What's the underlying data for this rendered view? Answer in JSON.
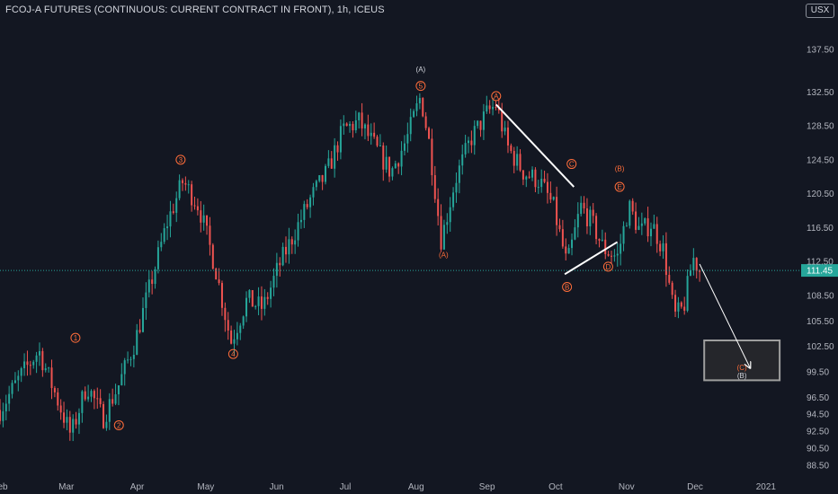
{
  "title": "FCOJ-A FUTURES (CONTINUOUS: CURRENT CONTRACT IN FRONT), 1h, ICEUS",
  "currency": "USX",
  "colors": {
    "background": "#131722",
    "up": "#26a69a",
    "down": "#ef5350",
    "wave_label": "#ff6d3a",
    "annotation_line": "#ffffff",
    "target_box": "#9e9e9e"
  },
  "chart_data": {
    "type": "candlestick",
    "title": "FCOJ-A FUTURES (CONTINUOUS: CURRENT CONTRACT IN FRONT), 1h, ICEUS",
    "y_ticks": [
      "137.50",
      "132.50",
      "128.50",
      "124.50",
      "120.50",
      "116.50",
      "112.50",
      "108.50",
      "105.50",
      "102.50",
      "99.50",
      "96.50",
      "94.50",
      "92.50",
      "90.50",
      "88.50"
    ],
    "x_ticks": [
      "Feb",
      "Mar",
      "Apr",
      "May",
      "Jun",
      "Jul",
      "Aug",
      "Sep",
      "Oct",
      "Nov",
      "Dec",
      "2021"
    ],
    "last_price": "111.45",
    "ylim": [
      87,
      141
    ],
    "price_path": [
      [
        "2020-02-01",
        95
      ],
      [
        "2020-02-10",
        99
      ],
      [
        "2020-02-18",
        102
      ],
      [
        "2020-02-25",
        97
      ],
      [
        "2020-03-03",
        92
      ],
      [
        "2020-03-10",
        98
      ],
      [
        "2020-03-17",
        94
      ],
      [
        "2020-03-24",
        98
      ],
      [
        "2020-03-31",
        103
      ],
      [
        "2020-04-07",
        110
      ],
      [
        "2020-04-14",
        117
      ],
      [
        "2020-04-21",
        122
      ],
      [
        "2020-04-28",
        119
      ],
      [
        "2020-05-05",
        112
      ],
      [
        "2020-05-12",
        103
      ],
      [
        "2020-05-19",
        108
      ],
      [
        "2020-05-26",
        107
      ],
      [
        "2020-06-02",
        112
      ],
      [
        "2020-06-09",
        116
      ],
      [
        "2020-06-16",
        120
      ],
      [
        "2020-06-23",
        123
      ],
      [
        "2020-06-30",
        128
      ],
      [
        "2020-07-07",
        129
      ],
      [
        "2020-07-14",
        126
      ],
      [
        "2020-07-21",
        123
      ],
      [
        "2020-07-28",
        127
      ],
      [
        "2020-08-03",
        132
      ],
      [
        "2020-08-07",
        126
      ],
      [
        "2020-08-12",
        115
      ],
      [
        "2020-08-18",
        122
      ],
      [
        "2020-08-25",
        127
      ],
      [
        "2020-09-01",
        130
      ],
      [
        "2020-09-05",
        131
      ],
      [
        "2020-09-10",
        126
      ],
      [
        "2020-09-17",
        123
      ],
      [
        "2020-09-24",
        122
      ],
      [
        "2020-09-30",
        119
      ],
      [
        "2020-10-06",
        112
      ],
      [
        "2020-10-12",
        119
      ],
      [
        "2020-10-17",
        117
      ],
      [
        "2020-10-22",
        114
      ],
      [
        "2020-10-28",
        113
      ],
      [
        "2020-11-02",
        119
      ],
      [
        "2020-11-07",
        116
      ],
      [
        "2020-11-12",
        117
      ],
      [
        "2020-11-17",
        114
      ],
      [
        "2020-11-22",
        106
      ],
      [
        "2020-11-26",
        107
      ],
      [
        "2020-11-30",
        113
      ],
      [
        "2020-12-03",
        111.45
      ]
    ],
    "wave_labels": [
      {
        "text": "1",
        "date": "2020-03-05",
        "price": 103.5,
        "style": "circle"
      },
      {
        "text": "2",
        "date": "2020-03-24",
        "price": 93.2,
        "style": "circle"
      },
      {
        "text": "3",
        "date": "2020-04-20",
        "price": 124.5,
        "style": "circle"
      },
      {
        "text": "4",
        "date": "2020-05-13",
        "price": 101.6,
        "style": "circle"
      },
      {
        "text": "5",
        "date": "2020-08-03",
        "price": 133.2,
        "style": "circle"
      },
      {
        "text": "(A)",
        "date": "2020-08-03",
        "price": 135.2,
        "style": "text-dark"
      },
      {
        "text": "(A)",
        "date": "2020-08-13",
        "price": 113.3,
        "style": "text"
      },
      {
        "text": "A",
        "date": "2020-09-05",
        "price": 132.0,
        "style": "circle"
      },
      {
        "text": "B",
        "date": "2020-10-06",
        "price": 109.5,
        "style": "circle"
      },
      {
        "text": "C",
        "date": "2020-10-08",
        "price": 124.0,
        "style": "circle"
      },
      {
        "text": "D",
        "date": "2020-10-24",
        "price": 111.9,
        "style": "circle"
      },
      {
        "text": "(B)",
        "date": "2020-10-29",
        "price": 123.5,
        "style": "text"
      },
      {
        "text": "E",
        "date": "2020-10-29",
        "price": 121.3,
        "style": "circle"
      }
    ],
    "trend_lines": [
      {
        "from": [
          "2020-09-05",
          131.0
        ],
        "to": [
          "2020-10-09",
          121.3
        ]
      },
      {
        "from": [
          "2020-10-05",
          111.0
        ],
        "to": [
          "2020-10-28",
          114.8
        ]
      },
      {
        "from": [
          "2020-12-03",
          112.2
        ],
        "to": [
          "2020-12-25",
          100.0
        ],
        "arrow": true
      }
    ],
    "target_box": {
      "x0": "2020-12-05",
      "x1": "2021-01-07",
      "y0": 103.2,
      "y1": 98.5,
      "labels": [
        "(C)",
        "(B)"
      ]
    }
  }
}
